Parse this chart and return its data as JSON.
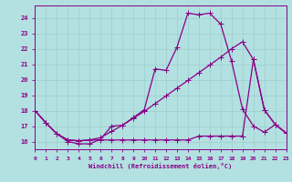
{
  "background_color": "#b3e0e0",
  "grid_color": "#9ecece",
  "line_color": "#880088",
  "xlim": [
    0,
    23
  ],
  "ylim": [
    15.5,
    24.8
  ],
  "xticks": [
    0,
    1,
    2,
    3,
    4,
    5,
    6,
    7,
    8,
    9,
    10,
    11,
    12,
    13,
    14,
    15,
    16,
    17,
    18,
    19,
    20,
    21,
    22,
    23
  ],
  "yticks": [
    16,
    17,
    18,
    19,
    20,
    21,
    22,
    23,
    24
  ],
  "xlabel": "Windchill (Refroidissement éolien,°C)",
  "line1_x": [
    0,
    1,
    2,
    3,
    4,
    5,
    6,
    7,
    8,
    9,
    10,
    11,
    12,
    13,
    14,
    15,
    16,
    17,
    18,
    19,
    20,
    21,
    22,
    23
  ],
  "line1_y": [
    18.0,
    17.2,
    16.5,
    16.0,
    15.85,
    15.85,
    16.15,
    17.0,
    17.05,
    17.55,
    18.05,
    20.7,
    20.6,
    22.1,
    24.3,
    24.2,
    24.3,
    23.6,
    21.2,
    18.1,
    17.0,
    16.6,
    17.1,
    16.55
  ],
  "line2_x": [
    0,
    1,
    2,
    3,
    4,
    5,
    6,
    7,
    8,
    9,
    10,
    11,
    12,
    13,
    14,
    15,
    16,
    17,
    18,
    19,
    20,
    21,
    22,
    23
  ],
  "line2_y": [
    18.0,
    17.2,
    16.5,
    16.1,
    16.05,
    16.1,
    16.25,
    16.65,
    17.05,
    17.5,
    17.95,
    18.45,
    18.95,
    19.45,
    19.95,
    20.45,
    20.95,
    21.45,
    22.0,
    22.45,
    21.3,
    18.05,
    17.1,
    16.55
  ],
  "line3_x": [
    0,
    1,
    2,
    3,
    4,
    5,
    6,
    7,
    8,
    9,
    10,
    11,
    12,
    13,
    14,
    15,
    16,
    17,
    18,
    19,
    20,
    21,
    22,
    23
  ],
  "line3_y": [
    18.0,
    17.2,
    16.5,
    16.1,
    16.05,
    16.1,
    16.1,
    16.1,
    16.1,
    16.1,
    16.1,
    16.1,
    16.1,
    16.1,
    16.1,
    16.35,
    16.35,
    16.35,
    16.35,
    16.35,
    21.3,
    18.05,
    17.1,
    16.55
  ]
}
